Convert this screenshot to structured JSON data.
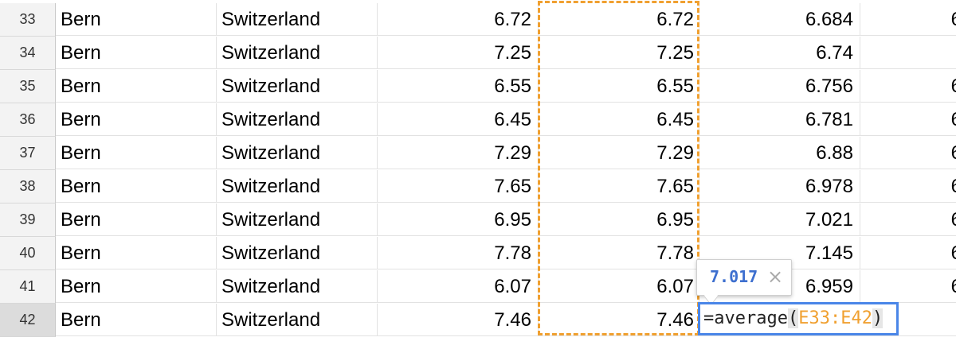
{
  "rows": [
    {
      "num": "33",
      "city": "Bern",
      "country": "Switzerland",
      "d": "6.72",
      "e": "6.72",
      "f": "6.684",
      "g": "6"
    },
    {
      "num": "34",
      "city": "Bern",
      "country": "Switzerland",
      "d": "7.25",
      "e": "7.25",
      "f": "6.74",
      "g": ""
    },
    {
      "num": "35",
      "city": "Bern",
      "country": "Switzerland",
      "d": "6.55",
      "e": "6.55",
      "f": "6.756",
      "g": "6"
    },
    {
      "num": "36",
      "city": "Bern",
      "country": "Switzerland",
      "d": "6.45",
      "e": "6.45",
      "f": "6.781",
      "g": "6"
    },
    {
      "num": "37",
      "city": "Bern",
      "country": "Switzerland",
      "d": "7.29",
      "e": "7.29",
      "f": "6.88",
      "g": "6"
    },
    {
      "num": "38",
      "city": "Bern",
      "country": "Switzerland",
      "d": "7.65",
      "e": "7.65",
      "f": "6.978",
      "g": "6"
    },
    {
      "num": "39",
      "city": "Bern",
      "country": "Switzerland",
      "d": "6.95",
      "e": "6.95",
      "f": "7.021",
      "g": "6"
    },
    {
      "num": "40",
      "city": "Bern",
      "country": "Switzerland",
      "d": "7.78",
      "e": "7.78",
      "f": "7.145",
      "g": "6"
    },
    {
      "num": "41",
      "city": "Bern",
      "country": "Switzerland",
      "d": "6.07",
      "e": "6.07",
      "f": "6.959",
      "g": "6"
    },
    {
      "num": "42",
      "city": "Bern",
      "country": "Switzerland",
      "d": "7.46",
      "e": "7.46",
      "f": "",
      "g": ""
    }
  ],
  "formula": {
    "prefix": "=average",
    "open_paren": "(",
    "range_ref": "E33:E42",
    "close_paren": ")"
  },
  "preview": {
    "value": "7.017",
    "close_glyph": "×"
  },
  "colors": {
    "range_highlight": "#f0a030",
    "editor_border": "#4a86e8",
    "preview_text": "#3d6fcf"
  }
}
